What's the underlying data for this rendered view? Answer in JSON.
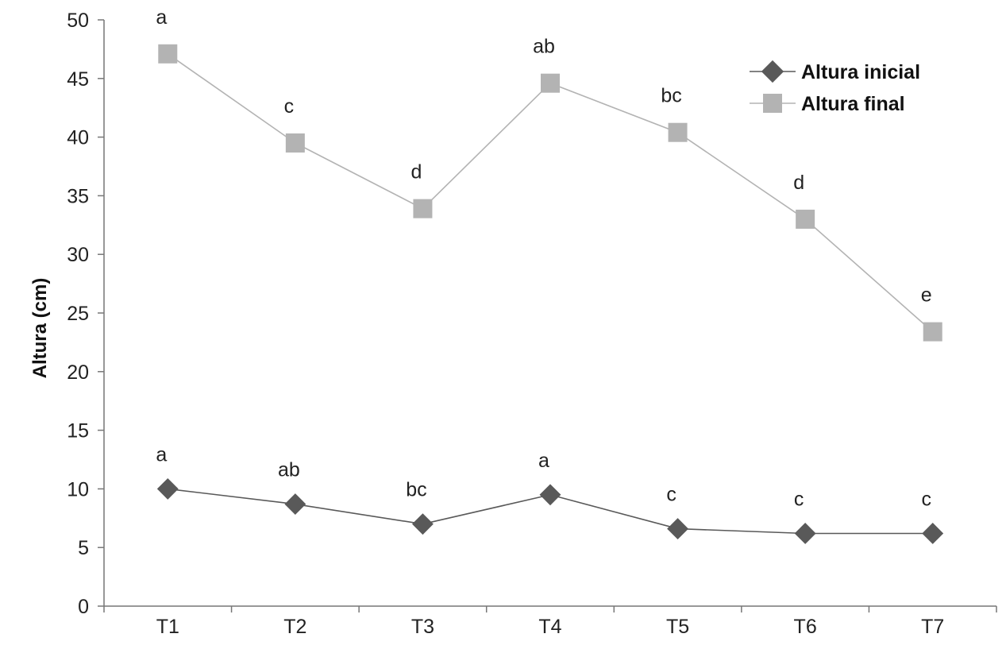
{
  "chart_data": {
    "type": "line",
    "title": "",
    "xlabel": "",
    "ylabel": "Altura (cm)",
    "categories": [
      "T1",
      "T2",
      "T3",
      "T4",
      "T5",
      "T6",
      "T7"
    ],
    "ylim": [
      0,
      50
    ],
    "yticks": [
      "0",
      "5",
      "10",
      "15",
      "20",
      "25",
      "30",
      "35",
      "40",
      "45",
      "50"
    ],
    "grid": false,
    "legend_position": "top-right",
    "series": [
      {
        "name": "Altura inicial",
        "marker": "diamond",
        "color": "#595959",
        "values": [
          10.0,
          8.7,
          7.0,
          9.5,
          6.6,
          6.2,
          6.2
        ],
        "labels": [
          "a",
          "ab",
          "bc",
          "a",
          "c",
          "c",
          "c"
        ]
      },
      {
        "name": "Altura final",
        "marker": "square",
        "color": "#b3b3b3",
        "values": [
          47.1,
          39.5,
          33.9,
          44.6,
          40.4,
          33.0,
          23.4
        ],
        "labels": [
          "a",
          "c",
          "d",
          "ab",
          "bc",
          "d",
          "e"
        ]
      }
    ]
  }
}
